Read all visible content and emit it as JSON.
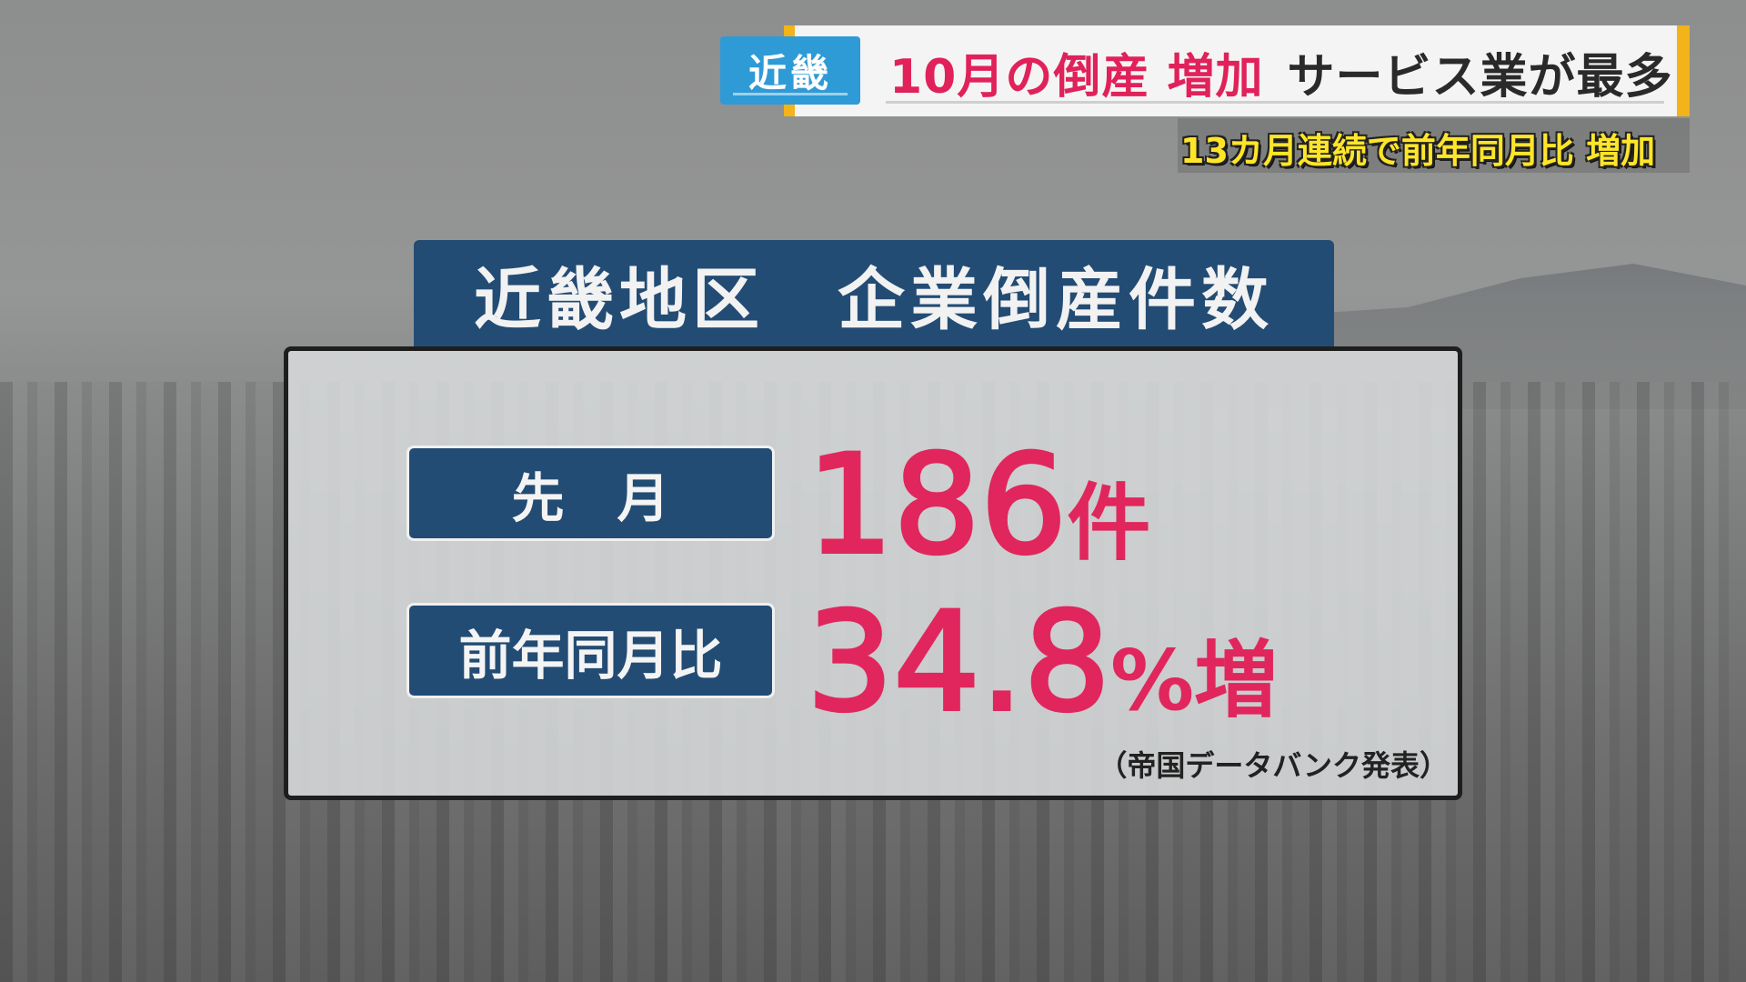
{
  "banner": {
    "region": "近畿",
    "headline_red": "10月の倒産 増加",
    "headline_dark": "サービス業が最多",
    "subheadline": "13カ月連続で前年同月比 増加"
  },
  "panel": {
    "title": "近畿地区　企業倒産件数",
    "rows": [
      {
        "label": "先　月",
        "value": "186",
        "unit": "件"
      },
      {
        "label": "前年同月比",
        "value": "34.8",
        "unit": "%増"
      }
    ],
    "source": "（帝国データバンク発表）"
  },
  "colors": {
    "accent_red": "#e0265d",
    "navy": "#234c74",
    "region_blue": "#2e9bd6",
    "subtitle_yellow": "#ffe52a",
    "banner_edge": "#f2b31b"
  }
}
